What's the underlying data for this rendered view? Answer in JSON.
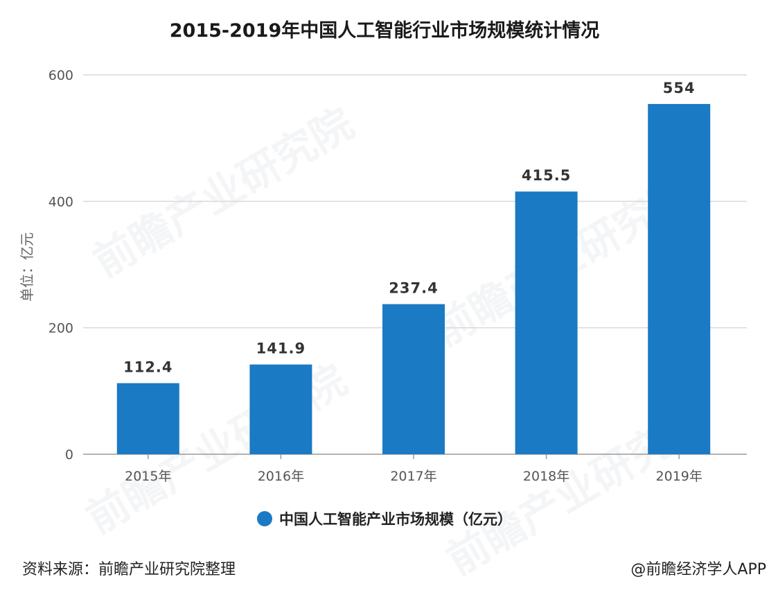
{
  "chart_data": {
    "type": "bar",
    "title": "2015-2019年中国人工智能行业市场规模统计情况",
    "ylabel": "单位：亿元",
    "xlabel": "",
    "categories": [
      "2015年",
      "2016年",
      "2017年",
      "2018年",
      "2019年"
    ],
    "series": [
      {
        "name": "中国人工智能产业市场规模（亿元）",
        "values": [
          112.4,
          141.9,
          237.4,
          415.5,
          554
        ],
        "labels": [
          "112.4",
          "141.9",
          "237.4",
          "415.5",
          "554"
        ],
        "color": "#1a7ac4"
      }
    ],
    "ylim": [
      0,
      600
    ],
    "yticks": [
      0,
      200,
      400,
      600
    ],
    "grid": true,
    "legend_position": "bottom"
  },
  "footer": {
    "source": "资料来源：前瞻产业研究院整理",
    "brand": "@前瞻经济学人APP"
  },
  "colors": {
    "bar": "#1a7ac4",
    "grid": "#d9d9d9",
    "axis": "#999999"
  }
}
